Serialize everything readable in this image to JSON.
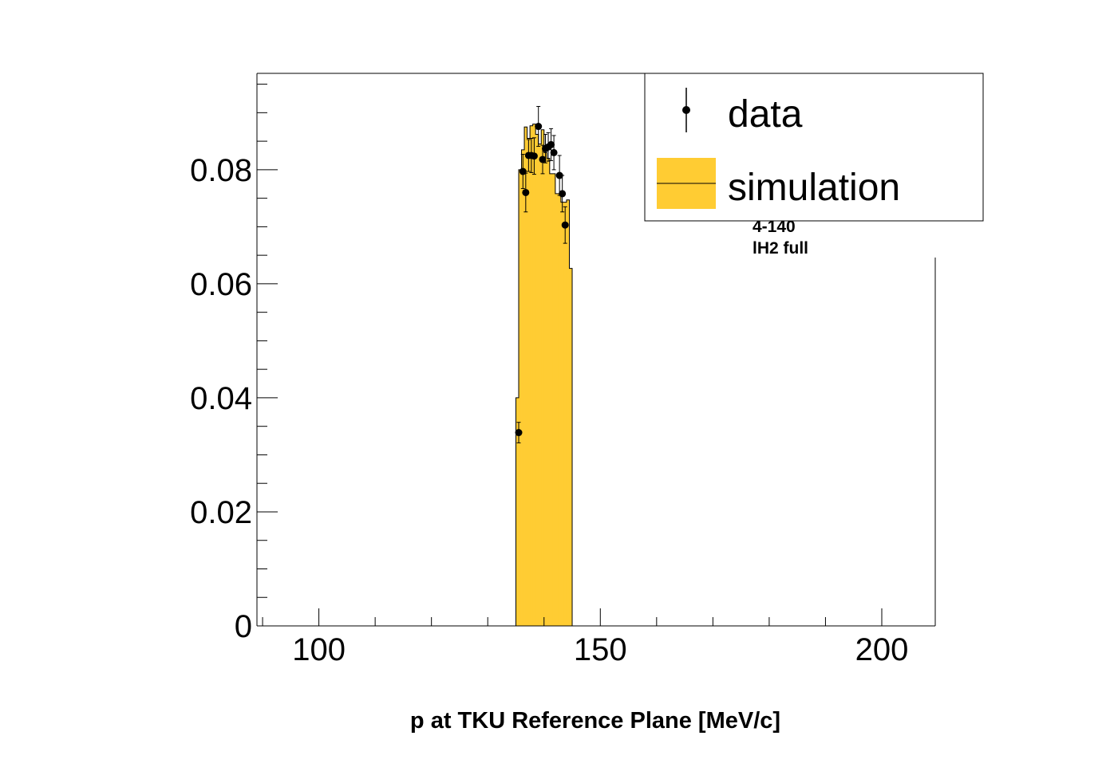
{
  "chart_data": {
    "type": "bar",
    "title": "",
    "xlabel": "p at TKU Reference Plane [MeV/c]",
    "ylabel": "",
    "xlim": [
      89,
      209.5
    ],
    "ylim": [
      0,
      0.0969
    ],
    "x_ticks": [
      100,
      150,
      200
    ],
    "x_tick_labels": [
      "100",
      "150",
      "200"
    ],
    "y_ticks": [
      0,
      0.02,
      0.04,
      0.06,
      0.08
    ],
    "y_tick_labels": [
      "0",
      "0.02",
      "0.04",
      "0.06",
      "0.08"
    ],
    "grid": false,
    "legend_position": "top-right",
    "annotations": [
      "4-140",
      "lH2 full"
    ],
    "colors": {
      "simulation_fill": "#ffcc33",
      "line": "#000000",
      "marker": "#000000"
    },
    "series": [
      {
        "name": "simulation",
        "style": "filled-step-histogram",
        "bin_width": 0.5,
        "bin_edges_start": 135,
        "values": [
          0.04,
          0.08,
          0.0835,
          0.0875,
          0.0855,
          0.0877,
          0.088,
          0.0862,
          0.0845,
          0.087,
          0.083,
          0.082,
          0.0793,
          0.0793,
          0.0758,
          0.0758,
          0.0743,
          0.0743,
          0.0747,
          0.0627
        ]
      },
      {
        "name": "data",
        "style": "points-with-errors",
        "x": [
          135.5,
          136.25,
          136.75,
          137.25,
          137.75,
          138.25,
          139.0,
          139.75,
          140.25,
          140.75,
          141.25,
          141.75,
          142.75,
          143.25,
          143.75
        ],
        "y": [
          0.0339,
          0.0797,
          0.076,
          0.0825,
          0.0825,
          0.0824,
          0.0876,
          0.0818,
          0.0837,
          0.084,
          0.0844,
          0.083,
          0.079,
          0.0758,
          0.0703
        ],
        "yerr": [
          0.0018,
          0.003,
          0.0034,
          0.0028,
          0.003,
          0.0032,
          0.0035,
          0.0025,
          0.0025,
          0.0025,
          0.0028,
          0.003,
          0.0035,
          0.0032,
          0.0032
        ]
      }
    ]
  }
}
